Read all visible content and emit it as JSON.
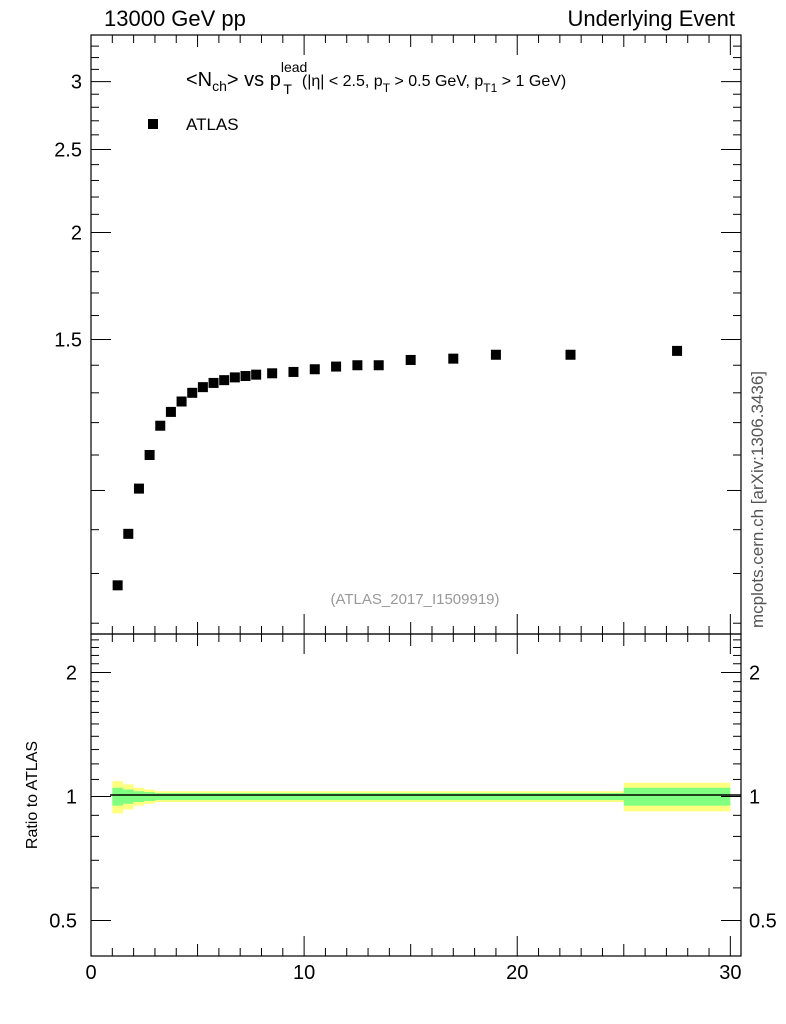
{
  "header": {
    "left": "13000 GeV pp",
    "right": "Underlying Event"
  },
  "side_label": "mcplots.cern.ch [arXiv:1306.3436]",
  "chart_data": [
    {
      "type": "scatter",
      "title_parts": {
        "n_open": "<N",
        "n_sub": "ch",
        "n_close": "> vs p",
        "p_sup": "lead",
        "p_sub": "T",
        "cond1": "(|η| < 2.5, p",
        "cond_sub1": "T",
        "cond2": " > 0.5 GeV, p",
        "cond_sub2": "T1",
        "cond3": " > 1 GeV)"
      },
      "watermark": "(ATLAS_2017_I1509919)",
      "xlim": [
        0,
        30.5
      ],
      "ylim": [
        0.68,
        3.4
      ],
      "y_major_ticks": [
        1.5,
        2,
        2.5,
        3
      ],
      "y_tick_labels": [
        "1.5",
        "2",
        "2.5",
        "3"
      ],
      "legend": {
        "label": "ATLAS",
        "placement": "top-left"
      },
      "series": [
        {
          "name": "ATLAS",
          "x": [
            1.25,
            1.75,
            2.25,
            2.75,
            3.25,
            3.75,
            4.25,
            4.75,
            5.25,
            5.75,
            6.25,
            6.75,
            7.25,
            7.75,
            8.5,
            9.5,
            10.5,
            11.5,
            12.5,
            13.5,
            15,
            17,
            19,
            22.5,
            27.5
          ],
          "y": [
            0.775,
            0.89,
            1.005,
            1.1,
            1.19,
            1.235,
            1.27,
            1.3,
            1.32,
            1.335,
            1.345,
            1.355,
            1.36,
            1.365,
            1.37,
            1.375,
            1.385,
            1.395,
            1.4,
            1.4,
            1.42,
            1.425,
            1.44,
            1.44,
            1.455
          ]
        }
      ]
    },
    {
      "type": "line",
      "ylabel": "Ratio to ATLAS",
      "xlim": [
        0,
        30.5
      ],
      "ylim": [
        0.5,
        2.0
      ],
      "y_ticks": [
        0.5,
        1,
        2
      ],
      "y_tick_labels": [
        "0.5",
        "1",
        "2"
      ],
      "x_ticks": [
        0,
        10,
        20,
        30
      ],
      "x_tick_labels": [
        "0",
        "10",
        "20",
        "30"
      ],
      "reference": 1,
      "band": {
        "x": [
          1,
          1.5,
          2,
          2.5,
          3,
          25,
          30
        ],
        "outer": [
          0.09,
          0.07,
          0.05,
          0.04,
          0.03,
          0.08,
          0.08
        ],
        "inner": [
          0.05,
          0.04,
          0.03,
          0.025,
          0.02,
          0.05,
          0.05
        ],
        "outer_color": "#ffff80",
        "inner_color": "#80ff80"
      }
    }
  ]
}
